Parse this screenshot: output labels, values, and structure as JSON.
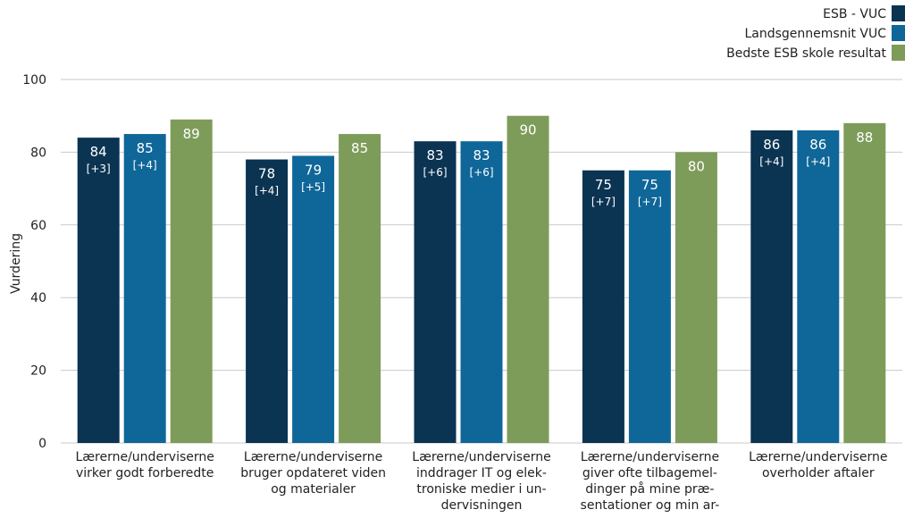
{
  "chart_data": {
    "type": "bar",
    "ylabel": "Vurdering",
    "ylim": [
      0,
      100
    ],
    "yticks": [
      0,
      20,
      40,
      60,
      80,
      100
    ],
    "grid": true,
    "legend": "top-right",
    "categories": [
      [
        "Lærerne/underviserne",
        "virker godt forberedte"
      ],
      [
        "Lærerne/underviserne",
        "bruger opdateret viden",
        "og materialer"
      ],
      [
        "Lærerne/underviserne",
        "inddrager IT og elek-",
        "troniske medier i un-",
        "dervisningen"
      ],
      [
        "Lærerne/underviserne",
        "giver ofte tilbagemel-",
        "dinger på mine præ-",
        "sentationer og min ar-"
      ],
      [
        "Lærerne/underviserne",
        "overholder aftaler"
      ]
    ],
    "series": [
      {
        "name": "ESB - VUC",
        "color": "#0b3352",
        "values": [
          84,
          78,
          83,
          75,
          86
        ],
        "deltas": [
          "[+3]",
          "[+4]",
          "[+6]",
          "[+7]",
          "[+4]"
        ]
      },
      {
        "name": "Landsgennemsnit VUC",
        "color": "#0f6698",
        "values": [
          85,
          79,
          83,
          75,
          86
        ],
        "deltas": [
          "[+4]",
          "[+5]",
          "[+6]",
          "[+7]",
          "[+4]"
        ]
      },
      {
        "name": "Bedste ESB skole resultat",
        "color": "#7e9c59",
        "values": [
          89,
          85,
          90,
          80,
          88
        ],
        "deltas": [
          "",
          "",
          "",
          "",
          ""
        ]
      }
    ]
  }
}
